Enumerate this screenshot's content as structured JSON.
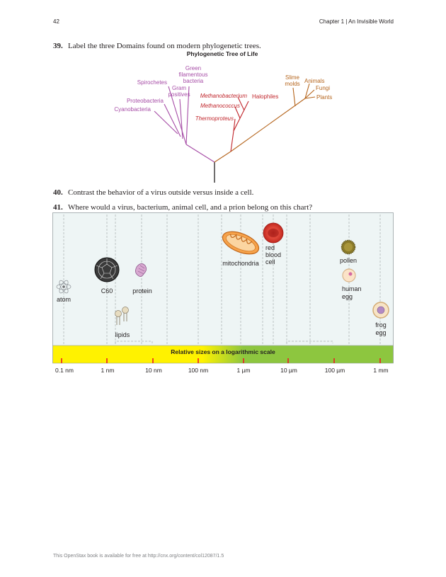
{
  "header": {
    "page_number": "42",
    "chapter": "Chapter 1 | An Invisible World"
  },
  "questions": [
    {
      "number": "39.",
      "text": "Label the three Domains found on modern phylogenetic trees."
    },
    {
      "number": "40.",
      "text": "Contrast the behavior of a virus outside versus inside a cell."
    },
    {
      "number": "41.",
      "text": "Where would a virus, bacterium, animal cell, and a prion belong on this chart?"
    }
  ],
  "tree": {
    "title": "Phylogenetic Tree of Life",
    "colors": {
      "bacteria": "#a64ca6",
      "archaea": "#c1272d",
      "eukarya": "#b5651d",
      "trunk": "#231f20"
    },
    "bacteria_labels": [
      "Green",
      "filamentous",
      "bacteria",
      "Spirochetes",
      "Gram",
      "positives",
      "Proteobacteria",
      "Cyanobacteria"
    ],
    "archaea_labels": [
      "Methanobacterium",
      "Methanococcus",
      "Thermoproteus",
      "Halophiles"
    ],
    "eukarya_labels": [
      "Slime",
      "molds",
      "Animals",
      "Fungi",
      "Plants"
    ]
  },
  "scale_chart": {
    "bar_title": "Relative sizes on a logarithmic scale",
    "ticks": [
      "0.1 nm",
      "1 nm",
      "10 nm",
      "100 nm",
      "1 µm",
      "10 µm",
      "100 µm",
      "1 mm"
    ],
    "items": {
      "atom": "atom",
      "c60": "C60",
      "protein": "protein",
      "lipids": "lipids",
      "mitochondria": "mitochondria",
      "rbc": [
        "red",
        "blood",
        "cell"
      ],
      "pollen": "pollen",
      "human_egg": [
        "human",
        "egg"
      ],
      "frog_egg": [
        "frog",
        "egg"
      ]
    },
    "colors": {
      "panel": "#eef5f5",
      "bar_yellow": "#fff200",
      "bar_green": "#8dc63f",
      "tick": "#ed1c24"
    }
  },
  "footer": "This OpenStax book is available for free at http://cnx.org/content/col12087/1.5"
}
